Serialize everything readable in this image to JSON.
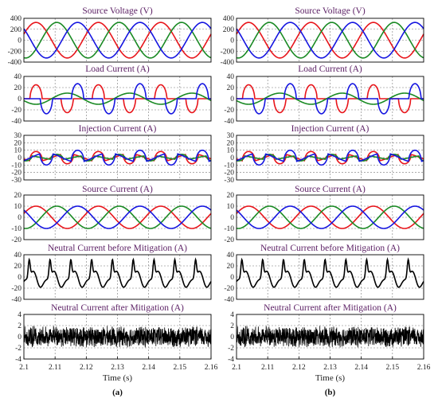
{
  "colors": {
    "phase_a": "#e8151b",
    "phase_b": "#1a8a24",
    "phase_c": "#1515e0",
    "neutral": "#000000",
    "title": "#5a1e63"
  },
  "figure": {
    "x_label": "Time (s)",
    "x_ticks": [
      "2.1",
      "2.11",
      "2.12",
      "2.13",
      "2.14",
      "2.15",
      "2.16"
    ],
    "xlim": [
      2.1,
      2.16
    ],
    "grid": "dashed",
    "captions": [
      "(a)",
      "(b)"
    ]
  },
  "chart_data": [
    {
      "type": "line",
      "panel": "source_voltage",
      "title": "Source Voltage (V)",
      "ylim": [
        -400,
        400
      ],
      "yticks": [
        "400",
        "200",
        "0",
        "-200",
        "-400"
      ],
      "series": [
        {
          "color": "#e8151b",
          "amplitude": 325,
          "phase_deg": 0,
          "freq_hz": 50
        },
        {
          "color": "#1a8a24",
          "amplitude": 325,
          "phase_deg": -120,
          "freq_hz": 50
        },
        {
          "color": "#1515e0",
          "amplitude": 325,
          "phase_deg": 120,
          "freq_hz": 50
        }
      ]
    },
    {
      "type": "line",
      "panel": "load_current",
      "title": "Load Current (A)",
      "ylim": [
        -40,
        40
      ],
      "yticks": [
        "40",
        "20",
        "0",
        "-20",
        "-40"
      ],
      "series": [
        {
          "color": "#e8151b",
          "peak": 25,
          "shape": "rectifier pulses"
        },
        {
          "color": "#1a8a24",
          "peak": 10,
          "shape": "low-amplitude wave"
        },
        {
          "color": "#1515e0",
          "peak": 27,
          "shape": "rectifier pulses"
        }
      ]
    },
    {
      "type": "line",
      "panel": "injection_current",
      "title": "Injection Current (A)",
      "ylim": [
        -30,
        30
      ],
      "yticks": [
        "30",
        "20",
        "10",
        "0",
        "-10",
        "-20",
        "-30"
      ],
      "series": [
        {
          "color": "#e8151b",
          "peak": 15
        },
        {
          "color": "#1a8a24",
          "peak": 8
        },
        {
          "color": "#1515e0",
          "peak": 18
        }
      ]
    },
    {
      "type": "line",
      "panel": "source_current",
      "title": "Source Current (A)",
      "ylim": [
        -20,
        20
      ],
      "yticks": [
        "20",
        "10",
        "0",
        "-10",
        "-20"
      ],
      "series": [
        {
          "color": "#e8151b",
          "amplitude": 10,
          "phase_deg": 0,
          "freq_hz": 50
        },
        {
          "color": "#1a8a24",
          "amplitude": 10,
          "phase_deg": -120,
          "freq_hz": 50
        },
        {
          "color": "#1515e0",
          "amplitude": 10,
          "phase_deg": 120,
          "freq_hz": 50
        }
      ]
    },
    {
      "type": "line",
      "panel": "neutral_before",
      "title": "Neutral Current before Mitigation (A)",
      "ylim": [
        -40,
        40
      ],
      "yticks": [
        "40",
        "20",
        "0",
        "-20",
        "-40"
      ],
      "series": [
        {
          "color": "#000000",
          "peak": 22,
          "freq_hz": 150
        }
      ]
    },
    {
      "type": "line",
      "panel": "neutral_after",
      "title": "Neutral Current after Mitigation (A)",
      "ylim": [
        -4,
        4
      ],
      "yticks": [
        "4",
        "2",
        "0",
        "-2",
        "-4"
      ],
      "series": [
        {
          "color": "#000000",
          "peak": 2,
          "shape": "noise"
        }
      ]
    }
  ]
}
